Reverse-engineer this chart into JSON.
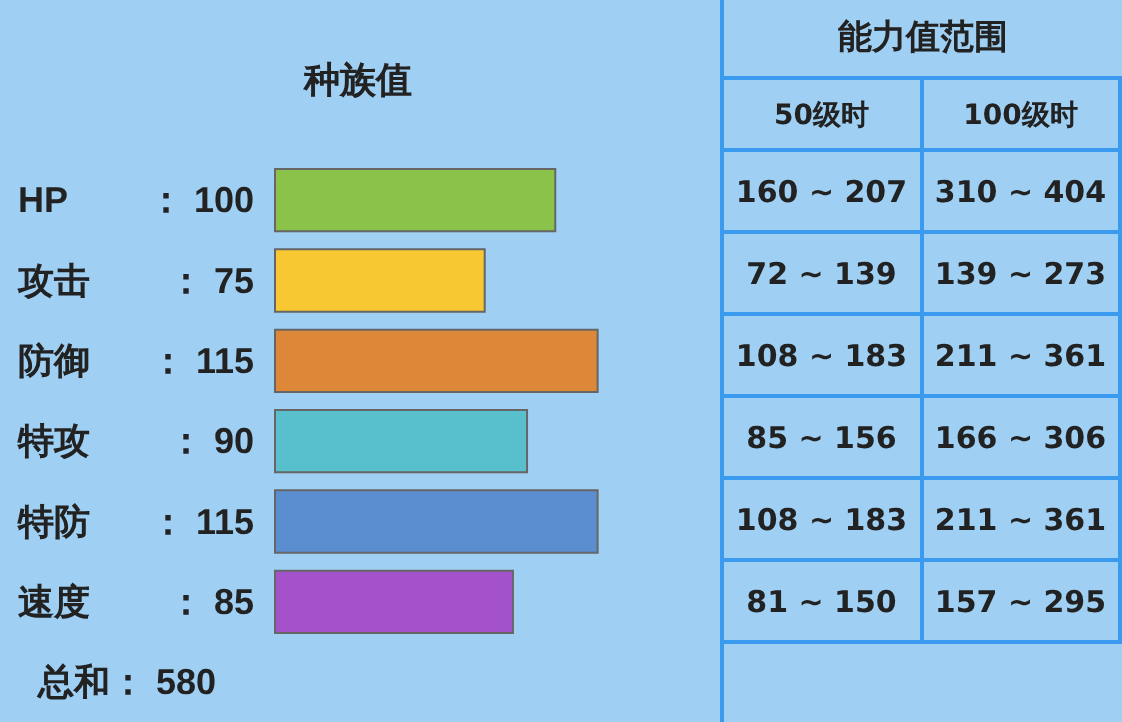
{
  "chart_data": [
    {
      "type": "bar",
      "title": "种族值",
      "orientation": "horizontal",
      "categories": [
        "HP",
        "攻击",
        "防御",
        "特攻",
        "特防",
        "速度"
      ],
      "values": [
        100,
        75,
        115,
        90,
        115,
        85
      ],
      "colors": [
        "#8bc34a",
        "#f8c832",
        "#dc8838",
        "#58c0cc",
        "#5a8ed0",
        "#a452cc"
      ],
      "value_labels": [
        "： 100",
        "： 75",
        "： 115",
        "： 90",
        "： 115",
        "： 85"
      ],
      "annotations": [
        "总和： 580"
      ]
    },
    {
      "type": "other",
      "title": "能力值范围",
      "annotations": [
        "50级时",
        "100级时",
        "160 ~ 207",
        "310 ~ 404",
        "72 ~ 139",
        "139 ~ 273",
        "108 ~ 183",
        "211 ~ 361",
        "85 ~ 156",
        "166 ~ 306",
        "108 ~ 183",
        "211 ~ 361",
        "81 ~ 150",
        "157 ~ 295"
      ]
    }
  ]
}
